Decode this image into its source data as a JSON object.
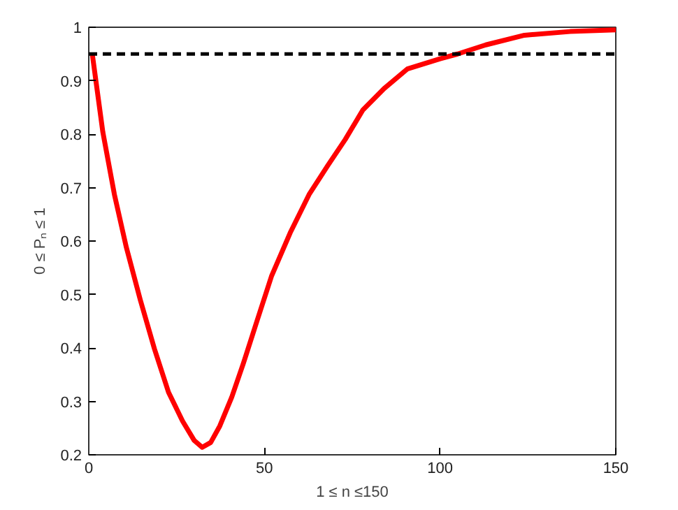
{
  "chart_data": {
    "type": "line",
    "xlabel": "1 ≤ n ≤150",
    "ylabel": "0 ≤ Pₙ ≤ 1",
    "xlim": [
      0,
      150
    ],
    "ylim": [
      0.2,
      1
    ],
    "xticks": [
      0,
      50,
      100,
      150
    ],
    "yticks": [
      0.2,
      0.3,
      0.4,
      0.5,
      0.6,
      0.7,
      0.8,
      0.9,
      1
    ],
    "grid": false,
    "marker": "none",
    "line_style": "solid",
    "series": [
      {
        "color": "#ff0000",
        "x": [
          1,
          4,
          7.3,
          10.7,
          14.7,
          18.7,
          22.7,
          26.7,
          30,
          32.3,
          34.7,
          37.3,
          40.7,
          44,
          48,
          52,
          57.3,
          62.7,
          68,
          73,
          78,
          84,
          90.7,
          100,
          105,
          113,
          124,
          137,
          150
        ],
        "values": [
          0.95,
          0.804,
          0.687,
          0.588,
          0.489,
          0.398,
          0.317,
          0.263,
          0.227,
          0.214,
          0.223,
          0.254,
          0.308,
          0.371,
          0.453,
          0.534,
          0.615,
          0.687,
          0.741,
          0.79,
          0.845,
          0.885,
          0.922,
          0.941,
          0.95,
          0.967,
          0.985,
          0.992,
          0.995
        ]
      }
    ],
    "ref_lines": [
      {
        "axis": "y",
        "value": 0.95,
        "color": "#000000",
        "line_style": "dashed"
      }
    ]
  }
}
